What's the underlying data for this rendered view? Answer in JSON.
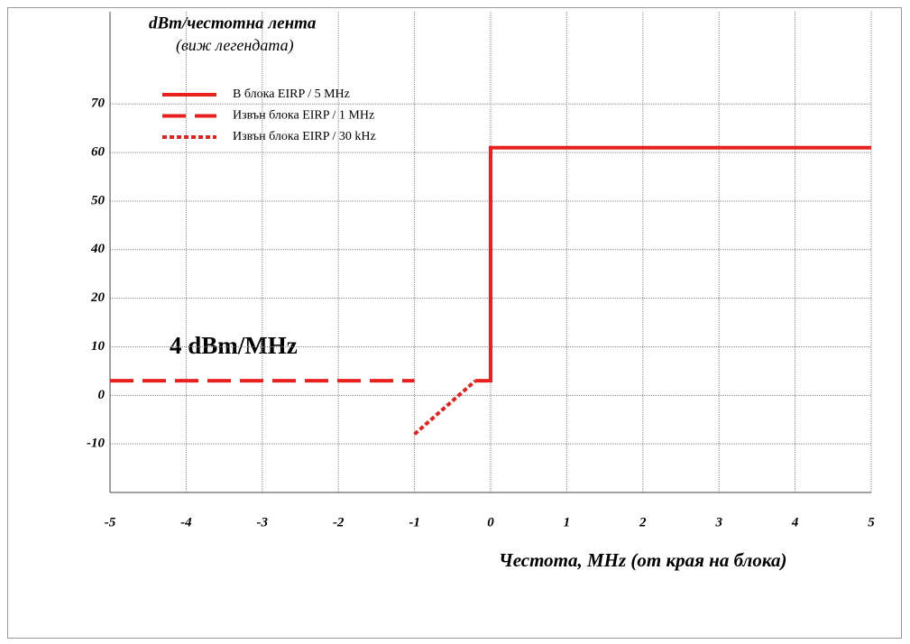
{
  "chart_data": {
    "type": "line",
    "title": "dBm/честотна лента",
    "subtitle": "(виж легендата)",
    "x_label": "Честота, MHz (от края на блока)",
    "annotation": "4 dBm/MHz",
    "xlim": [
      -5,
      5
    ],
    "xticks": [
      -5,
      -4,
      -3,
      -2,
      -1,
      0,
      1,
      2,
      3,
      4,
      5
    ],
    "ylim": [
      -20,
      79
    ],
    "yticks": [
      -10,
      0,
      10,
      20,
      {
        "value": 30,
        "label": "40"
      },
      {
        "value": 40,
        "label": "50"
      },
      {
        "value": 50,
        "label": "60"
      },
      {
        "value": 60,
        "label": "70"
      }
    ],
    "grid": true,
    "legend": "top-left",
    "series": [
      {
        "name": "В блока EIRP / 5 MHz",
        "color": "#e8201e",
        "style": "solid",
        "x": [
          -0.2,
          0,
          0,
          5
        ],
        "values": [
          3,
          3,
          51,
          51
        ]
      },
      {
        "name": "Извън блока EIRP / 1 MHz",
        "color": "#e8201e",
        "style": "dashed",
        "x": [
          -5,
          -1
        ],
        "values": [
          3,
          3
        ]
      },
      {
        "name": "Извън блока EIRP / 30 kHz",
        "color": "#e8201e",
        "style": "dotted",
        "x": [
          -1,
          -0.2
        ],
        "values": [
          -8,
          3
        ]
      }
    ]
  }
}
